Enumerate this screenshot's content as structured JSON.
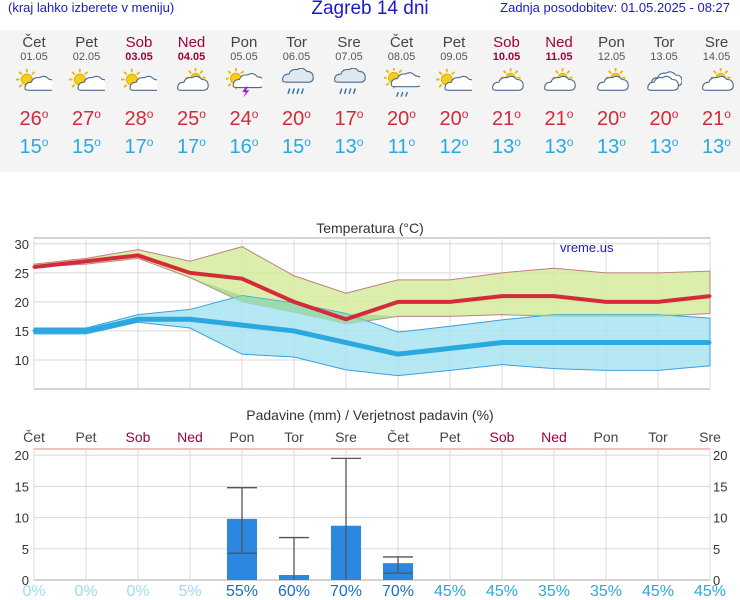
{
  "header": {
    "left_note": "(kraj lahko izberete v meniju)",
    "title": "Zagreb 14 dni",
    "updated": "Zadnja posodobitev: 01.05.2025 - 08:27"
  },
  "days": [
    {
      "name": "Čet",
      "date": "01.05",
      "weekend": false,
      "icon": "sun-cloud",
      "max": "26",
      "min": "15"
    },
    {
      "name": "Pet",
      "date": "02.05",
      "weekend": false,
      "icon": "sun-cloud",
      "max": "27",
      "min": "15"
    },
    {
      "name": "Sob",
      "date": "03.05",
      "weekend": true,
      "icon": "sun-cloud",
      "max": "28",
      "min": "17"
    },
    {
      "name": "Ned",
      "date": "04.05",
      "weekend": true,
      "icon": "cloud-sun",
      "max": "25",
      "min": "17"
    },
    {
      "name": "Pon",
      "date": "05.05",
      "weekend": false,
      "icon": "thunder",
      "max": "24",
      "min": "16"
    },
    {
      "name": "Tor",
      "date": "06.05",
      "weekend": false,
      "icon": "cloud-rain",
      "max": "20",
      "min": "15"
    },
    {
      "name": "Sre",
      "date": "07.05",
      "weekend": false,
      "icon": "cloud-rain",
      "max": "17",
      "min": "13"
    },
    {
      "name": "Čet",
      "date": "08.05",
      "weekend": false,
      "icon": "sun-rain",
      "max": "20",
      "min": "11"
    },
    {
      "name": "Pet",
      "date": "09.05",
      "weekend": false,
      "icon": "sun-cloud",
      "max": "20",
      "min": "12"
    },
    {
      "name": "Sob",
      "date": "10.05",
      "weekend": true,
      "icon": "cloud-sun",
      "max": "21",
      "min": "13"
    },
    {
      "name": "Ned",
      "date": "11.05",
      "weekend": true,
      "icon": "cloud-sun",
      "max": "21",
      "min": "13"
    },
    {
      "name": "Pon",
      "date": "12.05",
      "weekend": false,
      "icon": "cloud-sun",
      "max": "20",
      "min": "13"
    },
    {
      "name": "Tor",
      "date": "13.05",
      "weekend": false,
      "icon": "cloud",
      "max": "20",
      "min": "13"
    },
    {
      "name": "Sre",
      "date": "14.05",
      "weekend": false,
      "icon": "cloud-sun",
      "max": "21",
      "min": "13"
    }
  ],
  "colors": {
    "max": "#d42a3a",
    "min": "#2aa8e0",
    "weekend": "#a0003c",
    "max_band": "#d6eb9c",
    "min_band": "#a8e4f0",
    "overlap": "#8fd48a",
    "bar": "#2a88e0",
    "prob_low": "#99ddf0",
    "prob_mid": "#2aa8e0",
    "prob_high": "#1a6ec4"
  },
  "chart_data": [
    {
      "type": "line",
      "title": "Temperatura (°C)",
      "watermark": "vreme.us",
      "ylim": [
        5,
        31
      ],
      "yticks": [
        10,
        15,
        20,
        25,
        30
      ],
      "x": [
        "01.05",
        "02.05",
        "03.05",
        "04.05",
        "05.05",
        "06.05",
        "07.05",
        "08.05",
        "09.05",
        "10.05",
        "11.05",
        "12.05",
        "13.05",
        "14.05"
      ],
      "series": [
        {
          "role": "max",
          "values": [
            26,
            27,
            28,
            25,
            24,
            20,
            17,
            20,
            20,
            21,
            21,
            20,
            20,
            21
          ]
        },
        {
          "role": "max_upper",
          "values": [
            26.5,
            27.5,
            29,
            27,
            29.5,
            24.5,
            21.5,
            23.8,
            23.8,
            25,
            25.8,
            25,
            25,
            25.3
          ]
        },
        {
          "role": "max_lower",
          "values": [
            26,
            26.5,
            27.5,
            24.2,
            20,
            18.2,
            16.2,
            17.5,
            17.5,
            17.8,
            17.5,
            17.5,
            17.5,
            18
          ]
        },
        {
          "role": "min",
          "values": [
            15,
            15,
            17,
            17,
            16,
            15,
            13,
            11,
            12,
            13,
            13,
            13,
            13,
            13
          ]
        },
        {
          "role": "min_upper",
          "values": [
            15.5,
            15.5,
            17.8,
            18.7,
            21.1,
            19.8,
            18,
            14.8,
            15.8,
            16.9,
            17.8,
            17.8,
            17.8,
            17.2
          ]
        },
        {
          "role": "min_lower",
          "values": [
            14.5,
            14.5,
            16.5,
            15.5,
            11,
            10.5,
            8.3,
            7.3,
            8.2,
            9.2,
            8.5,
            8.2,
            8.2,
            9
          ]
        }
      ]
    },
    {
      "type": "bar",
      "title": "Padavine (mm) / Verjetnost padavin (%)",
      "ylim": [
        0,
        21
      ],
      "yticks": [
        0,
        5,
        10,
        15,
        20
      ],
      "categories": [
        "Čet",
        "Pet",
        "Sob",
        "Ned",
        "Pon",
        "Tor",
        "Sre",
        "Čet",
        "Pet",
        "Sob",
        "Ned",
        "Pon",
        "Tor",
        "Sre"
      ],
      "weekend": [
        false,
        false,
        true,
        true,
        false,
        false,
        false,
        false,
        false,
        true,
        true,
        false,
        false,
        false
      ],
      "values": [
        0,
        0,
        0,
        0,
        9.8,
        0.8,
        8.7,
        2.7,
        0,
        0,
        0,
        0,
        0,
        0
      ],
      "error_high": [
        0,
        0,
        0,
        0,
        14.8,
        6.8,
        19.5,
        3.7,
        0,
        0,
        0,
        0,
        0,
        0
      ],
      "error_low": [
        0,
        0,
        0,
        0,
        4.3,
        0,
        0,
        1.1,
        0,
        0,
        0,
        0,
        0,
        0
      ],
      "probability": [
        "0%",
        "0%",
        "0%",
        "5%",
        "55%",
        "60%",
        "70%",
        "70%",
        "45%",
        "45%",
        "35%",
        "35%",
        "45%",
        "45%"
      ]
    }
  ]
}
